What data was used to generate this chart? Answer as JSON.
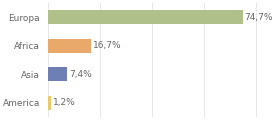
{
  "categories": [
    "Europa",
    "Africa",
    "Asia",
    "America"
  ],
  "values": [
    74.7,
    16.7,
    7.4,
    1.2
  ],
  "labels": [
    "74,7%",
    "16,7%",
    "7,4%",
    "1,2%"
  ],
  "bar_colors": [
    "#afc08a",
    "#e8a96b",
    "#6e7fb5",
    "#e8c96b"
  ],
  "background_color": "#ffffff",
  "label_fontsize": 6.5,
  "category_fontsize": 6.5,
  "bar_height": 0.5,
  "xlim": [
    0,
    88
  ],
  "grid_color": "#dddddd",
  "text_color": "#666666"
}
